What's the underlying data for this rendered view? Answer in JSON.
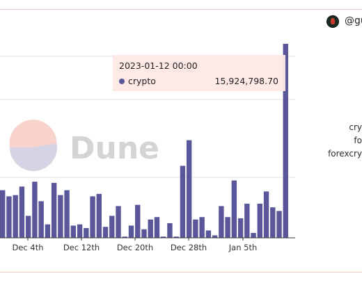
{
  "user": {
    "handle": "@gu"
  },
  "legend_lines": [
    "cry",
    "fo",
    "forexcry"
  ],
  "watermark": {
    "text": "Dune",
    "colors": {
      "top": "#f7d3cc",
      "bottom": "#d5d4e4"
    }
  },
  "tooltip": {
    "date": "2023-01-12 00:00",
    "series_name": "crypto",
    "value": "15,924,798.70"
  },
  "chart_data": {
    "type": "bar",
    "series": [
      {
        "name": "crypto",
        "color": "#59579a",
        "values": [
          3.9,
          3.4,
          3.5,
          4.2,
          1.8,
          4.6,
          3.0,
          1.1,
          4.5,
          3.5,
          3.9,
          1.0,
          1.1,
          0.8,
          3.4,
          3.6,
          0.9,
          1.8,
          2.6,
          0.1,
          1.0,
          2.7,
          0.7,
          1.5,
          1.7,
          0.1,
          1.2,
          0.1,
          5.9,
          8.0,
          1.5,
          1.7,
          0.6,
          0.2,
          2.6,
          1.7,
          4.7,
          1.6,
          2.8,
          0.4,
          2.8,
          3.8,
          2.5,
          2.2,
          15.9
        ]
      }
    ],
    "x_ticks": [
      "Dec 4th",
      "Dec 12th",
      "Dec 20th",
      "Dec 28th",
      "Jan 5th"
    ],
    "colors": {
      "bar": "#59579a",
      "grid": "#e3e3e3"
    },
    "grid": true,
    "cropped": true
  }
}
